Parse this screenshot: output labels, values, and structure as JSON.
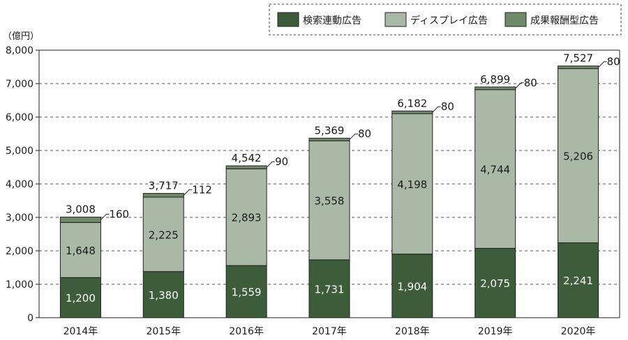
{
  "chart_data": {
    "type": "bar",
    "stacked": true,
    "title": "",
    "unit_label": "（億円）",
    "categories": [
      "2014年",
      "2015年",
      "2016年",
      "2017年",
      "2018年",
      "2019年",
      "2020年"
    ],
    "series": [
      {
        "name": "検索連動広告",
        "color": "#3d5c3a",
        "values": [
          1200,
          1380,
          1559,
          1731,
          1904,
          2075,
          2241
        ]
      },
      {
        "name": "ディスプレイ広告",
        "color": "#aab8a6",
        "values": [
          1648,
          2225,
          2893,
          3558,
          4198,
          4744,
          5206
        ]
      },
      {
        "name": "成果報酬型広告",
        "color": "#6f8a68",
        "values": [
          160,
          112,
          90,
          80,
          80,
          80,
          80
        ]
      }
    ],
    "totals": [
      3008,
      3717,
      4542,
      5369,
      6182,
      6899,
      7527
    ],
    "ylim": [
      0,
      8000
    ],
    "yticks": [
      0,
      1000,
      2000,
      3000,
      4000,
      5000,
      6000,
      7000,
      8000
    ],
    "ytick_labels": [
      "0",
      "1,000",
      "2,000",
      "3,000",
      "4,000",
      "5,000",
      "6,000",
      "7,000",
      "8,000"
    ],
    "grid": true,
    "legend_position": "top-right"
  }
}
